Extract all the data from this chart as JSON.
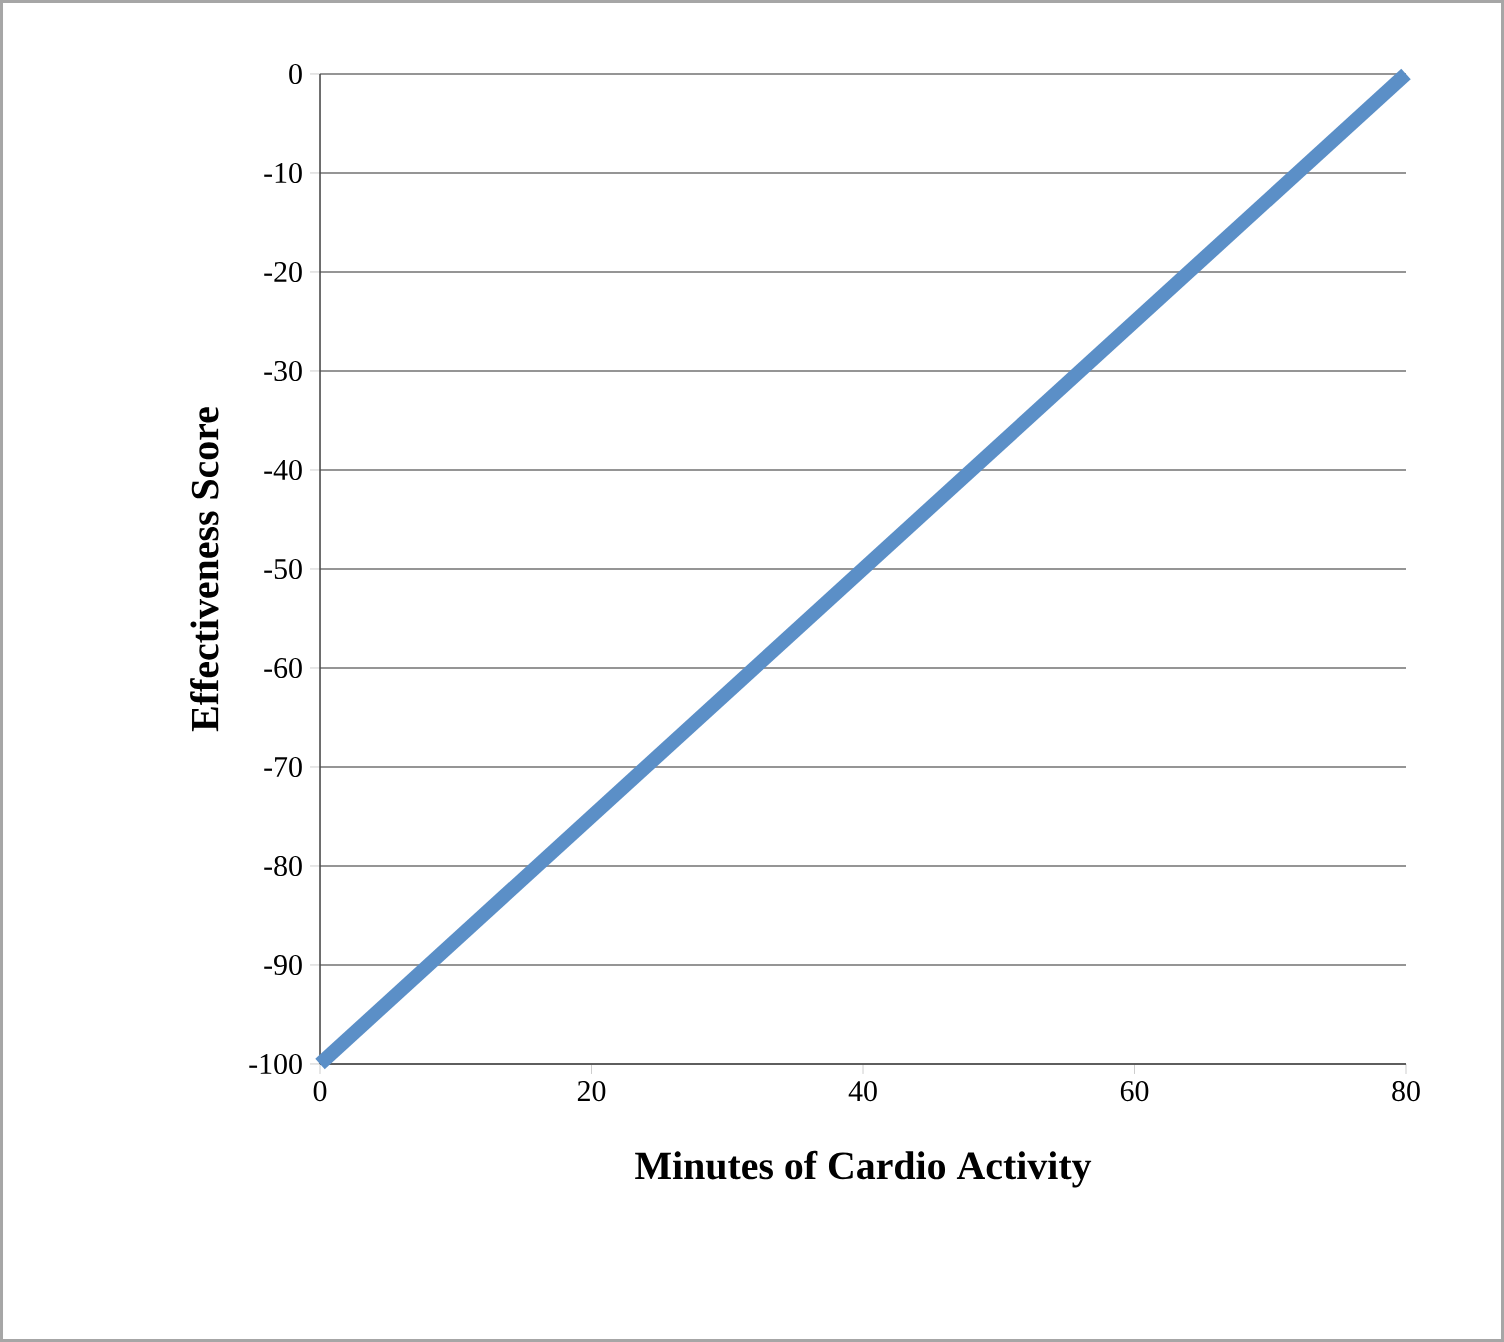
{
  "chart_data": {
    "type": "line",
    "xlabel": "Minutes of Cardio Activity",
    "ylabel": "Effectiveness Score",
    "x": [
      0,
      80
    ],
    "series": [
      {
        "color": "#5b8fc7",
        "values": [
          -100,
          0
        ]
      }
    ],
    "xlim": [
      0,
      80
    ],
    "ylim": [
      -100,
      0
    ],
    "xticks": [
      0,
      20,
      40,
      60,
      80
    ],
    "yticks": [
      -100,
      -90,
      -80,
      -70,
      -60,
      -50,
      -40,
      -30,
      -20,
      -10,
      0
    ],
    "grid": "y"
  }
}
